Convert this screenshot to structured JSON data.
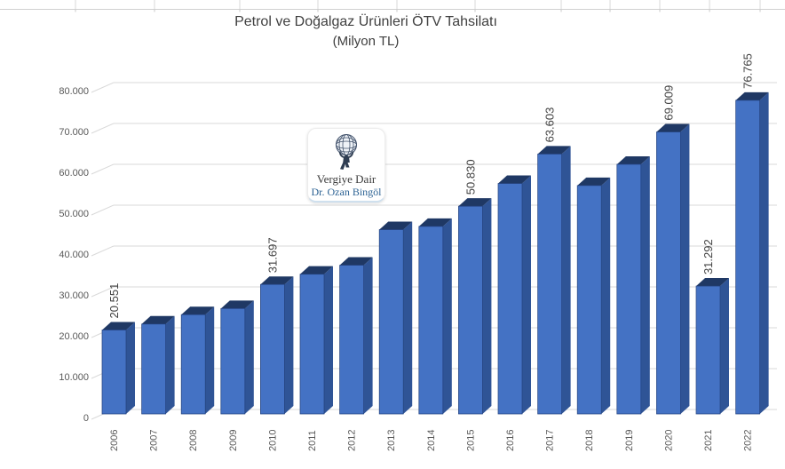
{
  "chart_data": {
    "type": "bar",
    "style": "3d-column",
    "title": "Petrol ve Doğalgaz Ürünleri ÖTV Tahsilatı",
    "subtitle": "(Milyon TL)",
    "categories": [
      "2006",
      "2007",
      "2008",
      "2009",
      "2010",
      "2011",
      "2012",
      "2013",
      "2014",
      "2015",
      "2016",
      "2017",
      "2018",
      "2019",
      "2020",
      "2021",
      "2022"
    ],
    "values": [
      20551,
      22000,
      24300,
      25800,
      31697,
      34200,
      36400,
      45100,
      45900,
      50830,
      56400,
      63603,
      55900,
      61100,
      69009,
      31292,
      76765
    ],
    "data_labels": [
      "20.551",
      "",
      "",
      "",
      "31.697",
      "",
      "",
      "",
      "",
      "50.830",
      "",
      "63.603",
      "",
      "",
      "69.009",
      "31.292",
      "76.765"
    ],
    "xlabel": "",
    "ylabel": "",
    "ylim": [
      0,
      80000
    ],
    "ytick_interval": 10000,
    "yticks": [
      0,
      10000,
      20000,
      30000,
      40000,
      50000,
      60000,
      70000,
      80000
    ],
    "ytick_labels": [
      "0",
      "10.000",
      "20.000",
      "30.000",
      "40.000",
      "50.000",
      "60.000",
      "70.000",
      "80.000"
    ],
    "grid": true,
    "legend": "none",
    "colors": {
      "bar_front": "#4472C4",
      "bar_side": "#2F5496",
      "bar_top": "#1F3864",
      "bar_outline": "#24427F",
      "gridline": "#D9D9D9",
      "axis_text": "#595959",
      "data_label_text": "#404040",
      "title_text": "#404040"
    }
  },
  "logo": {
    "icon": "atlas-globe-icon",
    "line1": "Vergiye Dair",
    "line2": "Dr. Ozan Bingöl",
    "line1_color": "#3B3B3B",
    "line2_color": "#2D6394"
  }
}
